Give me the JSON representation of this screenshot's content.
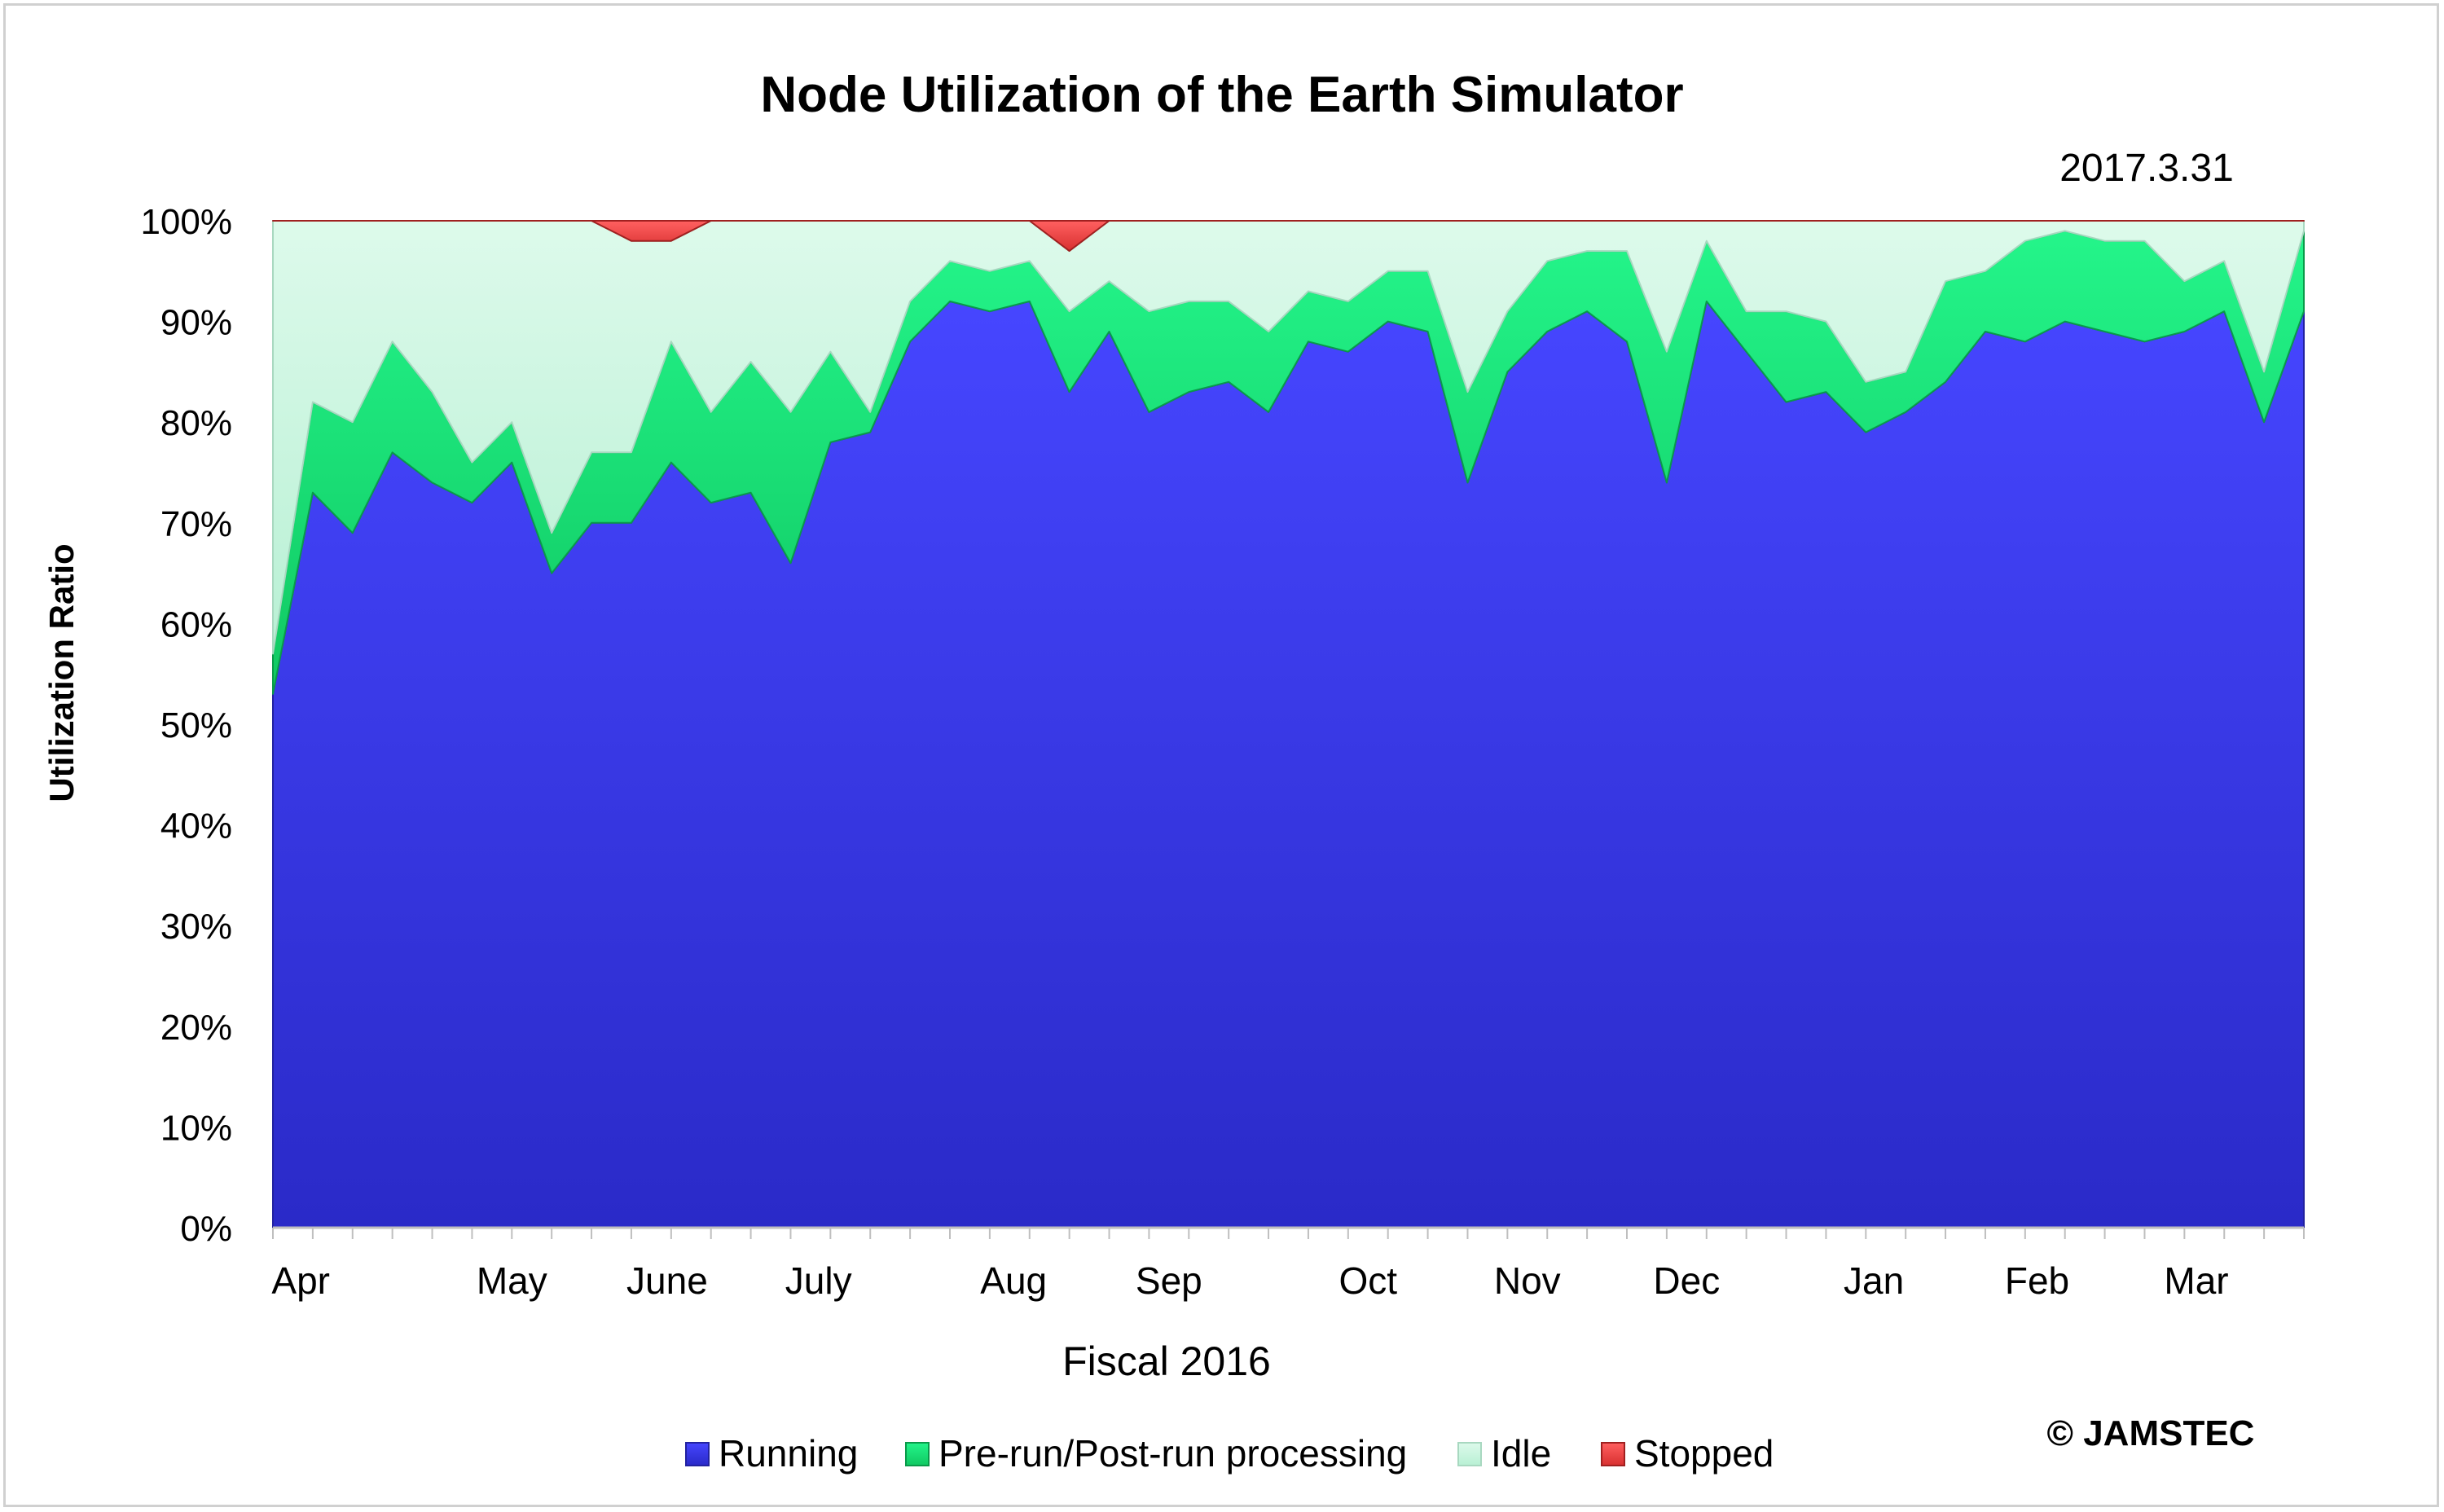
{
  "chart_data": {
    "type": "area",
    "stacked": true,
    "title": "Node Utilization of the Earth Simulator",
    "date_label": "2017.3.31",
    "xlabel": "Fiscal 2016",
    "ylabel": "Utilization Ratio",
    "ylim": [
      0,
      100
    ],
    "y_ticks": [
      "0%",
      "10%",
      "20%",
      "30%",
      "40%",
      "50%",
      "60%",
      "70%",
      "80%",
      "90%",
      "100%"
    ],
    "month_labels": [
      {
        "label": "Apr",
        "week": 0.7
      },
      {
        "label": "May",
        "week": 6.0
      },
      {
        "label": "June",
        "week": 9.9
      },
      {
        "label": "July",
        "week": 13.7
      },
      {
        "label": "Aug",
        "week": 18.6
      },
      {
        "label": "Sep",
        "week": 22.5
      },
      {
        "label": "Oct",
        "week": 27.5
      },
      {
        "label": "Nov",
        "week": 31.5
      },
      {
        "label": "Dec",
        "week": 35.5
      },
      {
        "label": "Jan",
        "week": 40.2
      },
      {
        "label": "Feb",
        "week": 44.3
      },
      {
        "label": "Mar",
        "week": 48.3
      }
    ],
    "x": [
      0,
      1,
      2,
      3,
      4,
      5,
      6,
      7,
      8,
      9,
      10,
      11,
      12,
      13,
      14,
      15,
      16,
      17,
      18,
      19,
      20,
      21,
      22,
      23,
      24,
      25,
      26,
      27,
      28,
      29,
      30,
      31,
      32,
      33,
      34,
      35,
      36,
      37,
      38,
      39,
      40,
      41,
      42,
      43,
      44,
      45,
      46,
      47,
      48,
      49,
      50,
      51
    ],
    "series": [
      {
        "name": "Running",
        "color": "#3535e8",
        "values": [
          53,
          73,
          69,
          77,
          74,
          72,
          76,
          65,
          70,
          70,
          76,
          72,
          73,
          66,
          78,
          79,
          88,
          92,
          91,
          92,
          83,
          89,
          81,
          83,
          84,
          81,
          88,
          87,
          90,
          89,
          74,
          85,
          89,
          91,
          88,
          74,
          92,
          87,
          82,
          83,
          79,
          81,
          84,
          89,
          88,
          90,
          89,
          88,
          89,
          91,
          80,
          91
        ]
      },
      {
        "name": "Pre-run/Post-run processing",
        "color": "#1fe07a",
        "values": [
          4,
          9,
          11,
          11,
          9,
          4,
          4,
          4,
          7,
          7,
          12,
          9,
          13,
          15,
          9,
          2,
          4,
          4,
          4,
          4,
          8,
          5,
          10,
          9,
          8,
          8,
          5,
          5,
          5,
          6,
          9,
          6,
          7,
          6,
          9,
          13,
          6,
          4,
          9,
          7,
          5,
          4,
          10,
          6,
          10,
          9,
          9,
          10,
          5,
          5,
          5,
          8
        ]
      },
      {
        "name": "Idle",
        "color": "#c8f5e0",
        "values": [
          43,
          18,
          20,
          12,
          17,
          24,
          20,
          31,
          23,
          21,
          10,
          19,
          14,
          19,
          13,
          19,
          8,
          4,
          5,
          4,
          6,
          6,
          9,
          8,
          8,
          11,
          7,
          8,
          5,
          5,
          17,
          9,
          4,
          3,
          3,
          13,
          2,
          9,
          9,
          10,
          16,
          15,
          6,
          5,
          2,
          1,
          2,
          2,
          6,
          4,
          15,
          1
        ]
      },
      {
        "name": "Stopped",
        "color": "#e84848",
        "values": [
          0,
          0,
          0,
          0,
          0,
          0,
          0,
          0,
          0,
          2,
          2,
          0,
          0,
          0,
          0,
          0,
          0,
          0,
          0,
          0,
          3,
          0,
          0,
          0,
          0,
          0,
          0,
          0,
          0,
          0,
          0,
          0,
          0,
          0,
          0,
          0,
          0,
          0,
          0,
          0,
          0,
          0,
          0,
          0,
          0,
          0,
          0,
          0,
          0,
          0,
          0,
          0
        ]
      }
    ],
    "legend_position": "bottom",
    "grid": true,
    "copyright": "© JAMSTEC"
  }
}
